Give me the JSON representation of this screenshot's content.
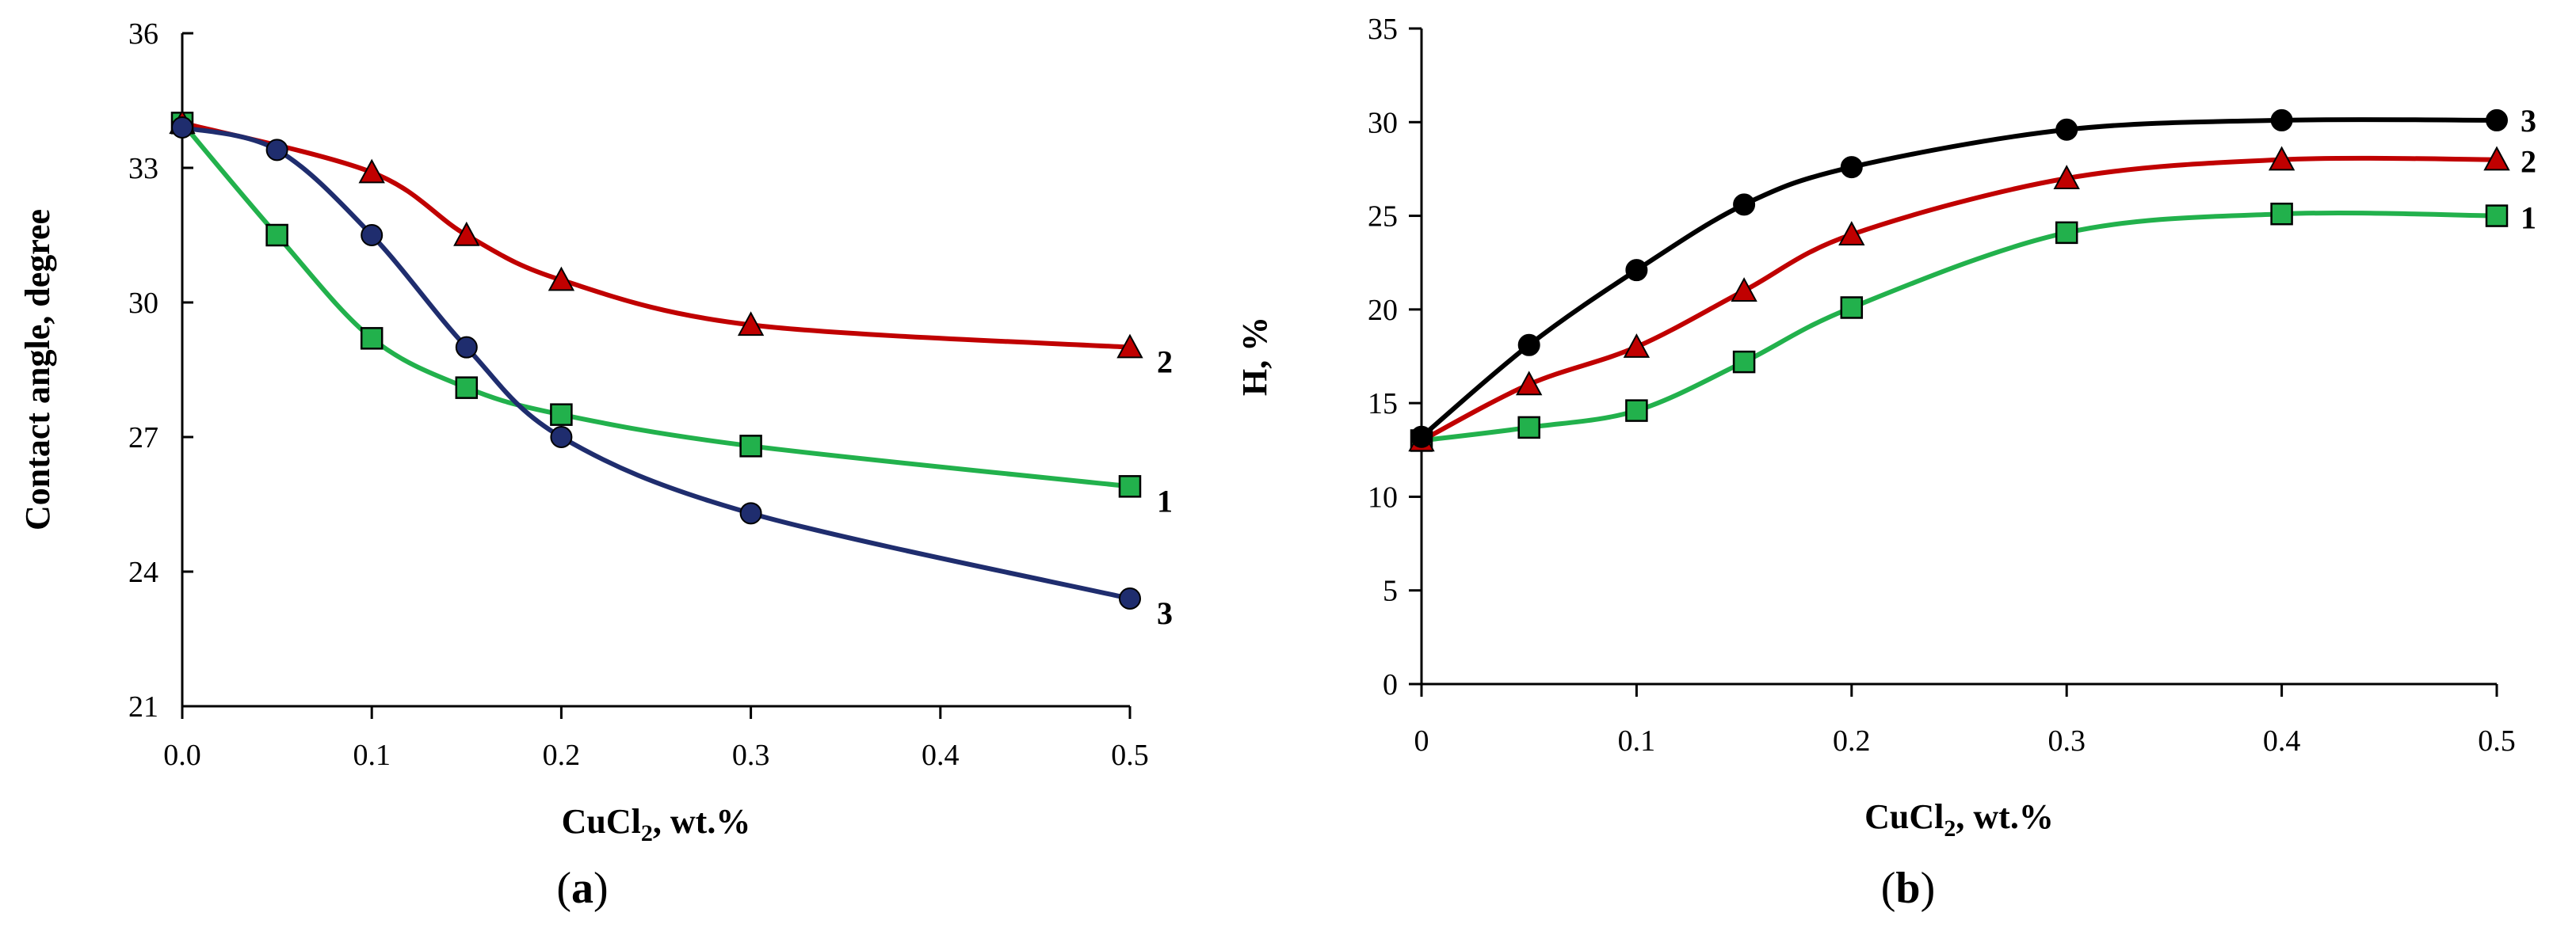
{
  "chart_data": [
    {
      "type": "line",
      "panel_label": "(a)",
      "panel_open": "(",
      "panel_letter": "a",
      "panel_close": ")",
      "xlabel_main": "CuCl",
      "xlabel_sub": "2",
      "xlabel_tail": ", wt.%",
      "ylabel": "Contact angle, degree",
      "xlim": [
        0,
        0.5
      ],
      "ylim": [
        21,
        36
      ],
      "xticks": [
        0,
        0.1,
        0.2,
        0.3,
        0.4,
        0.5
      ],
      "xtick_labels": [
        "0.0",
        "0.1",
        "0.2",
        "0.3",
        "0.4",
        "0.5"
      ],
      "yticks": [
        21,
        24,
        27,
        30,
        33,
        36
      ],
      "ytick_labels": [
        "21",
        "24",
        "27",
        "30",
        "33",
        "36"
      ],
      "grid": false,
      "series": [
        {
          "name": "1",
          "label": "1",
          "color": "#22b14c",
          "marker": "square",
          "x": [
            0,
            0.05,
            0.1,
            0.15,
            0.2,
            0.3,
            0.5
          ],
          "y": [
            34.0,
            31.5,
            29.2,
            28.1,
            27.5,
            26.8,
            25.9
          ]
        },
        {
          "name": "2",
          "label": "2",
          "color": "#c00000",
          "marker": "triangle",
          "x": [
            0,
            0.1,
            0.15,
            0.2,
            0.3,
            0.5
          ],
          "y": [
            34.0,
            32.9,
            31.5,
            30.5,
            29.5,
            29.0
          ]
        },
        {
          "name": "3",
          "label": "3",
          "color": "#1f2d6e",
          "marker": "circle",
          "x": [
            0,
            0.05,
            0.1,
            0.15,
            0.2,
            0.3,
            0.5
          ],
          "y": [
            33.9,
            33.4,
            31.5,
            29.0,
            27.0,
            25.3,
            23.4
          ]
        }
      ]
    },
    {
      "type": "line",
      "panel_label": "(b)",
      "panel_open": "(",
      "panel_letter": "b",
      "panel_close": ")",
      "xlabel_main": "CuCl",
      "xlabel_sub": "2",
      "xlabel_tail": ", wt.%",
      "ylabel": "H, %",
      "xlim": [
        0,
        0.5
      ],
      "ylim": [
        0,
        35
      ],
      "xticks": [
        0,
        0.1,
        0.2,
        0.3,
        0.4,
        0.5
      ],
      "xtick_labels": [
        "0",
        "0.1",
        "0.2",
        "0.3",
        "0.4",
        "0.5"
      ],
      "yticks": [
        0,
        5,
        10,
        15,
        20,
        25,
        30,
        35
      ],
      "ytick_labels": [
        "0",
        "5",
        "10",
        "15",
        "20",
        "25",
        "30",
        "35"
      ],
      "grid": false,
      "series": [
        {
          "name": "1",
          "label": "1",
          "color": "#22b14c",
          "marker": "square",
          "x": [
            0,
            0.05,
            0.1,
            0.15,
            0.2,
            0.3,
            0.4,
            0.5
          ],
          "y": [
            13.0,
            13.7,
            14.6,
            17.2,
            20.1,
            24.1,
            25.1,
            25.0
          ]
        },
        {
          "name": "2",
          "label": "2",
          "color": "#c00000",
          "marker": "triangle",
          "x": [
            0,
            0.05,
            0.1,
            0.15,
            0.2,
            0.3,
            0.4,
            0.5
          ],
          "y": [
            13.0,
            16.0,
            18.0,
            21.0,
            24.0,
            27.0,
            28.0,
            28.0
          ]
        },
        {
          "name": "3",
          "label": "3",
          "color": "#000000",
          "marker": "circle",
          "x": [
            0,
            0.05,
            0.1,
            0.15,
            0.2,
            0.3,
            0.4,
            0.5
          ],
          "y": [
            13.2,
            18.1,
            22.1,
            25.6,
            27.6,
            29.6,
            30.1,
            30.1
          ]
        }
      ]
    }
  ]
}
